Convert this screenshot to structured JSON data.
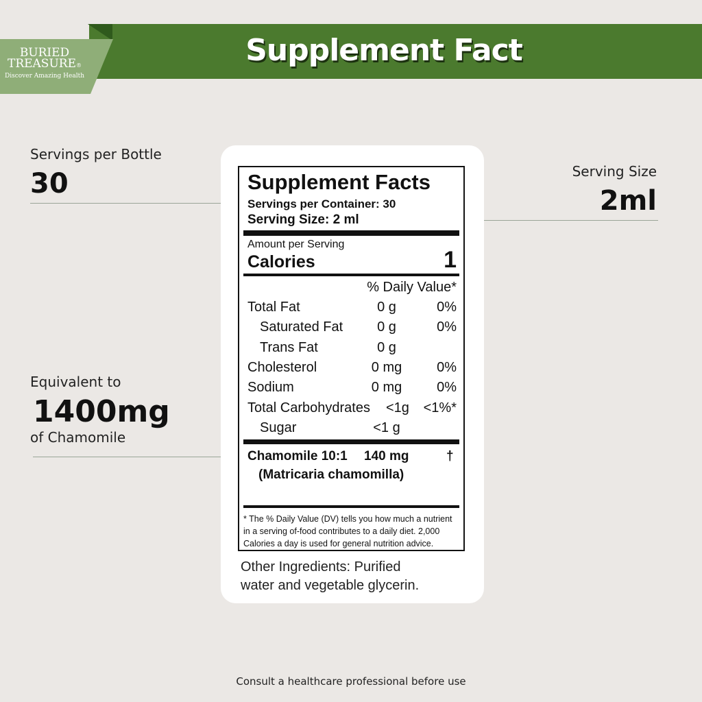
{
  "header": {
    "title": "Supplement Fact",
    "brand": {
      "line1": "BURIED",
      "line2": "TREASURE",
      "mark": "®",
      "tagline": "Discover Amazing Health"
    }
  },
  "callouts": {
    "servings": {
      "label": "Servings per Bottle",
      "value": "30"
    },
    "serving_size": {
      "label": "Serving Size",
      "value": "2ml"
    },
    "equivalent": {
      "label": "Equivalent  to",
      "value": "1400mg",
      "sub": "of Chamomile"
    }
  },
  "facts": {
    "title": "Supplement Facts",
    "servings_per_container": "Servings per Container: 30",
    "serving_size": "Serving Size: 2 ml",
    "amount_per_serving": "Amount  per  Serving",
    "calories_label": "Calories",
    "calories_value": "1",
    "dv_header": "% Daily Value*",
    "rows": [
      {
        "name": "Total Fat",
        "amount": "0 g",
        "dv": "0%",
        "indent": false
      },
      {
        "name": "Saturated Fat",
        "amount": "0 g",
        "dv": "0%",
        "indent": true
      },
      {
        "name": "Trans Fat",
        "amount": "0 g",
        "dv": "",
        "indent": true
      },
      {
        "name": "Cholesterol",
        "amount": "0 mg",
        "dv": "0%",
        "indent": false
      },
      {
        "name": "Sodium",
        "amount": "0 mg",
        "dv": "0%",
        "indent": false
      },
      {
        "name": "Total Carbohydrates",
        "amount": "<1g",
        "dv": "<1%*",
        "indent": false
      },
      {
        "name": "Sugar",
        "amount": "<1 g",
        "dv": "",
        "indent": true
      }
    ],
    "ingredient": {
      "name": "Chamomile 10:1",
      "amount": "140 mg",
      "dv": "†",
      "latin": "(Matricaria chamomilla)"
    },
    "footnote": "* The % Daily Value (DV) tells you how much a nutrient in a serving of-food contributes to a daily diet. 2,000 Calories a day is used for general nutrition advice."
  },
  "other_ingredients": {
    "line1": "Other Ingredients:  Purified",
    "line2": "water and vegetable glycerin."
  },
  "footer": "Consult a healthcare professional before use",
  "colors": {
    "banner": "#4b7a2e",
    "logo": "#8fae78",
    "background": "#ebe8e5"
  }
}
